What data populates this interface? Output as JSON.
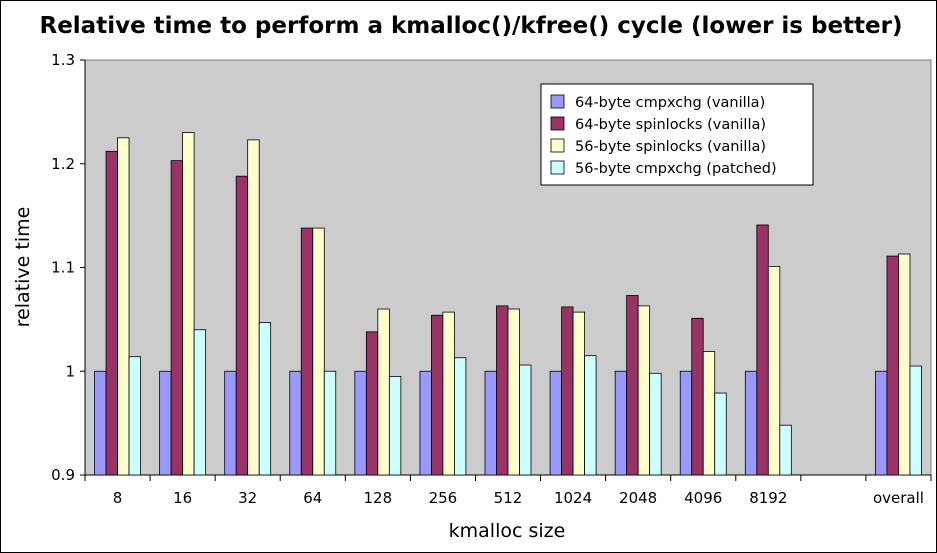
{
  "chart_data": {
    "type": "bar",
    "title": "Relative time to perform a kmalloc()/kfree() cycle (lower is better)",
    "xlabel": "kmalloc size",
    "ylabel": "relative time",
    "ylim": [
      0.9,
      1.3
    ],
    "yticks": [
      "0.9",
      "1",
      "1.1",
      "1.2",
      "1.3"
    ],
    "ytick_values": [
      0.9,
      1.0,
      1.1,
      1.2,
      1.3
    ],
    "grid": false,
    "legend_position": "top-right",
    "background": "#cccccc",
    "categories": [
      "8",
      "16",
      "32",
      "64",
      "128",
      "256",
      "512",
      "1024",
      "2048",
      "4096",
      "8192",
      "",
      "overall"
    ],
    "series": [
      {
        "name": "64-byte cmpxchg (vanilla)",
        "color": "#9999ff",
        "values": [
          1.0,
          1.0,
          1.0,
          1.0,
          1.0,
          1.0,
          1.0,
          1.0,
          1.0,
          1.0,
          1.0,
          null,
          1.0
        ]
      },
      {
        "name": "64-byte spinlocks (vanilla)",
        "color": "#993366",
        "values": [
          1.212,
          1.203,
          1.188,
          1.138,
          1.038,
          1.054,
          1.063,
          1.062,
          1.073,
          1.051,
          1.141,
          null,
          1.111
        ]
      },
      {
        "name": "56-byte spinlocks (vanilla)",
        "color": "#ffffcc",
        "values": [
          1.225,
          1.23,
          1.223,
          1.138,
          1.06,
          1.057,
          1.06,
          1.057,
          1.063,
          1.019,
          1.101,
          null,
          1.113
        ]
      },
      {
        "name": "56-byte cmpxchg (patched)",
        "color": "#ccffff",
        "values": [
          1.014,
          1.04,
          1.047,
          1.0,
          0.995,
          1.013,
          1.006,
          1.015,
          0.998,
          0.979,
          0.948,
          null,
          1.005
        ]
      }
    ]
  }
}
